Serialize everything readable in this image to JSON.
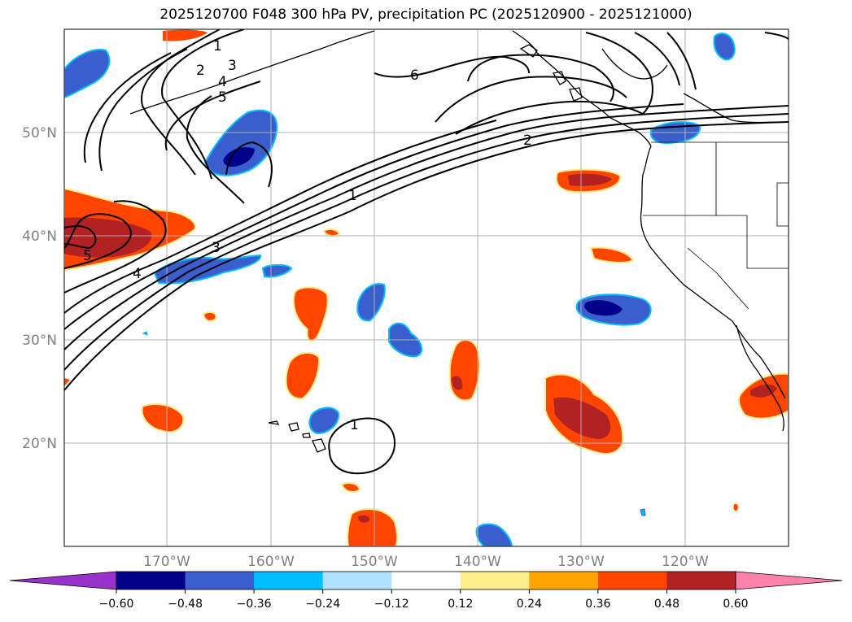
{
  "title": "2025120700 F048 300 hPa PV, precipitation PC (2025120900 - 2025121000)",
  "map": {
    "lat_labels": [
      {
        "lat": 50,
        "label": "50°N"
      },
      {
        "lat": 40,
        "label": "40°N"
      },
      {
        "lat": 30,
        "label": "30°N"
      },
      {
        "lat": 20,
        "label": "20°N"
      }
    ],
    "lon_labels": [
      {
        "lon": -170,
        "label": "170°W"
      },
      {
        "lon": -160,
        "label": "160°W"
      },
      {
        "lon": -150,
        "label": "150°W"
      },
      {
        "lon": -140,
        "label": "140°W"
      },
      {
        "lon": -130,
        "label": "130°W"
      },
      {
        "lon": -120,
        "label": "120°W"
      }
    ],
    "contour_labels": [
      "1",
      "2",
      "3",
      "4",
      "5",
      "6",
      "2",
      "1",
      "3",
      "4",
      "5",
      "1"
    ]
  },
  "colorbar": {
    "ticks": [
      "−0.60",
      "−0.48",
      "−0.36",
      "−0.24",
      "−0.12",
      "0.12",
      "0.24",
      "0.36",
      "0.48",
      "0.60"
    ],
    "colors": [
      "#9932cc",
      "#00008b",
      "#3a5fcd",
      "#00bfff",
      "#b0e2ff",
      "#ffffff",
      "#ffec8b",
      "#ffa500",
      "#ff4500",
      "#b22222",
      "#ff82ab"
    ]
  },
  "colors": {
    "neg_strong": "#00008b",
    "neg_mid": "#3a5fcd",
    "neg_light": "#00bfff",
    "pos_light": "#ffec8b",
    "pos_mid": "#ff4500",
    "pos_strong": "#b22222"
  }
}
